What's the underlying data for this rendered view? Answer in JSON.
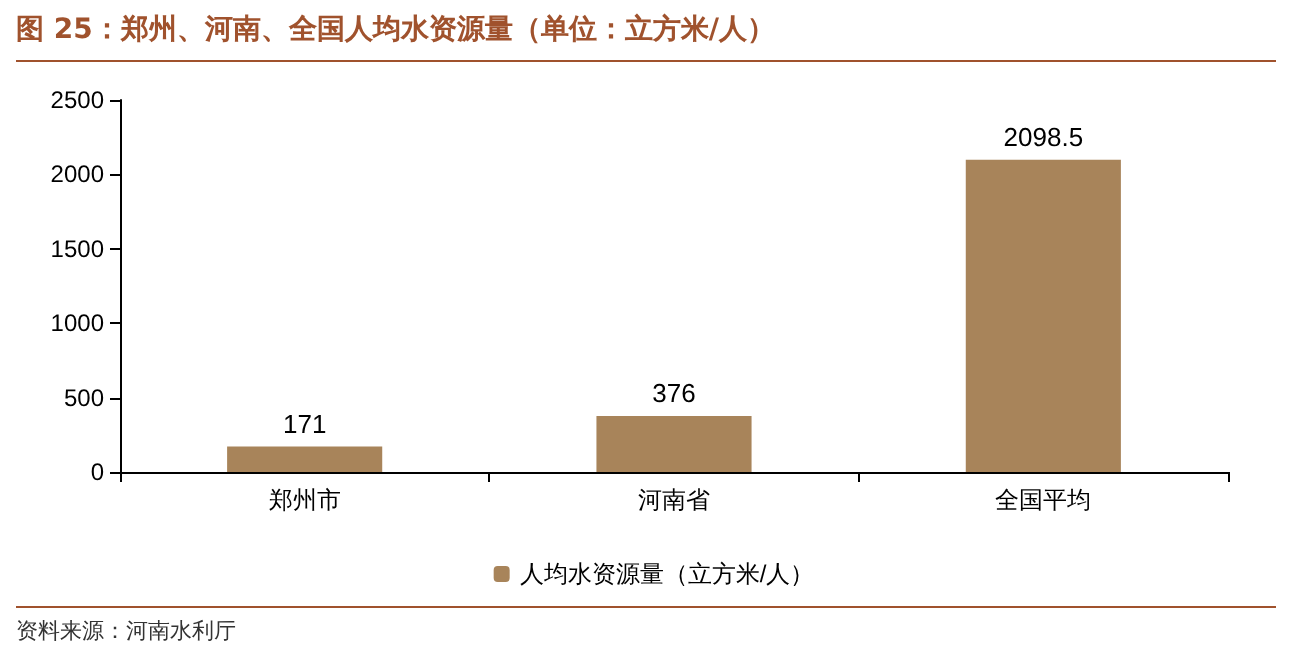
{
  "chart_data": {
    "type": "bar",
    "title": "图 25：郑州、河南、全国人均水资源量（单位：立方米/人）",
    "categories": [
      "郑州市",
      "河南省",
      "全国平均"
    ],
    "series": [
      {
        "name": "人均水资源量（立方米/人）",
        "color": "#a8845a",
        "values": [
          171,
          376,
          2098.5
        ]
      }
    ],
    "ylim": [
      0,
      2500
    ],
    "yticks": [
      0,
      500,
      1000,
      1500,
      2000,
      2500
    ],
    "grid": false,
    "legend": "bottom",
    "data_labels": true,
    "annotations": [
      "资料来源：河南水利厅"
    ]
  }
}
